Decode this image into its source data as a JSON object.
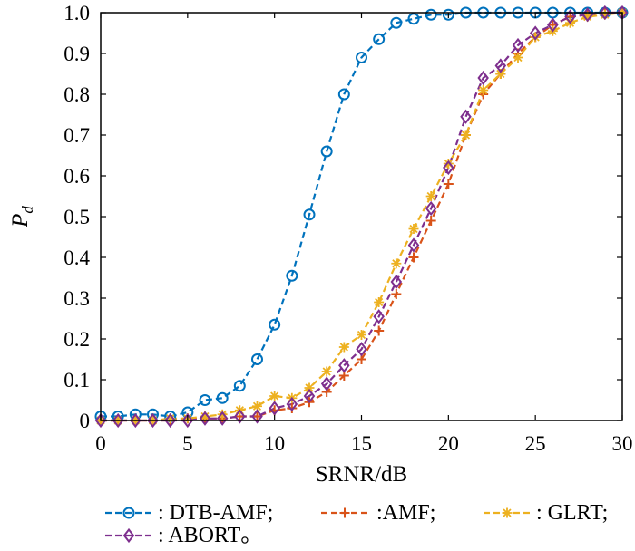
{
  "chart_data": {
    "type": "line",
    "xlabel": "SRNR/dB",
    "ylabel_main": "P",
    "ylabel_sub": "d",
    "xlim": [
      0,
      30
    ],
    "ylim": [
      0,
      1
    ],
    "x_ticks": [
      "0",
      "5",
      "10",
      "15",
      "20",
      "25",
      "30"
    ],
    "y_ticks": [
      "0",
      "0.1",
      "0.2",
      "0.3",
      "0.4",
      "0.5",
      "0.6",
      "0.7",
      "0.8",
      "0.9",
      "1.0"
    ],
    "grid": false,
    "legend_position": "bottom",
    "x": [
      0,
      1,
      2,
      3,
      4,
      5,
      6,
      7,
      8,
      9,
      10,
      11,
      12,
      13,
      14,
      15,
      16,
      17,
      18,
      19,
      20,
      21,
      22,
      23,
      24,
      25,
      26,
      27,
      28,
      29,
      30
    ],
    "series": [
      {
        "name": ": DTB-AMF;",
        "marker": "circle",
        "color": "#0072BD",
        "values": [
          0.01,
          0.01,
          0.015,
          0.015,
          0.01,
          0.02,
          0.05,
          0.055,
          0.085,
          0.15,
          0.235,
          0.355,
          0.505,
          0.66,
          0.8,
          0.89,
          0.935,
          0.975,
          0.985,
          0.995,
          0.995,
          1.0,
          1.0,
          1.0,
          1.0,
          1.0,
          1.0,
          1.0,
          1.0,
          1.0,
          1.0
        ]
      },
      {
        "name": ":AMF;",
        "marker": "plus",
        "color": "#D95319",
        "values": [
          0,
          0,
          0,
          0,
          0,
          0.005,
          0.005,
          0.005,
          0.01,
          0.01,
          0.025,
          0.03,
          0.045,
          0.07,
          0.11,
          0.15,
          0.22,
          0.31,
          0.4,
          0.49,
          0.58,
          0.7,
          0.8,
          0.85,
          0.9,
          0.94,
          0.97,
          0.99,
          0.995,
          1.0,
          1.0
        ]
      },
      {
        "name": ": GLRT;",
        "marker": "asterisk",
        "color": "#EDB120",
        "values": [
          0,
          0,
          0,
          0,
          0.005,
          0.005,
          0.01,
          0.015,
          0.025,
          0.035,
          0.06,
          0.055,
          0.08,
          0.12,
          0.18,
          0.21,
          0.29,
          0.385,
          0.47,
          0.55,
          0.63,
          0.7,
          0.81,
          0.85,
          0.89,
          0.94,
          0.955,
          0.975,
          0.99,
          0.995,
          1.0
        ]
      },
      {
        "name": ": ABORT。",
        "marker": "diamond",
        "color": "#7E2F8E",
        "values": [
          0,
          0,
          0,
          0,
          0,
          0,
          0.005,
          0.005,
          0.01,
          0.01,
          0.03,
          0.04,
          0.06,
          0.09,
          0.135,
          0.175,
          0.255,
          0.34,
          0.43,
          0.52,
          0.62,
          0.745,
          0.84,
          0.87,
          0.92,
          0.95,
          0.97,
          0.99,
          0.995,
          1.0,
          1.0
        ]
      }
    ]
  }
}
